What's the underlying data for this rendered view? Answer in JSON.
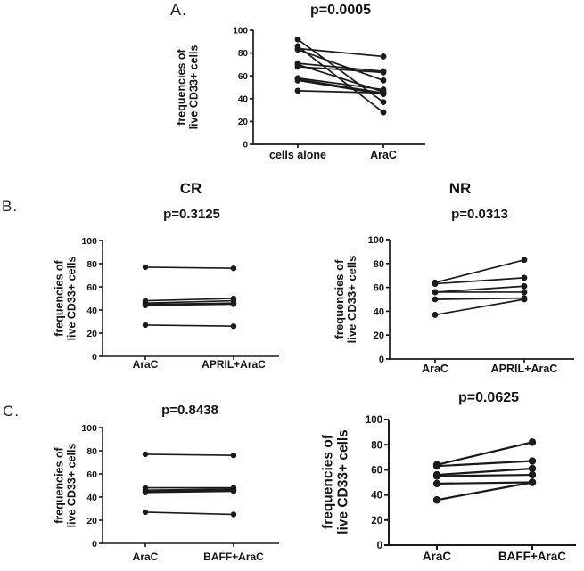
{
  "panels": {
    "a": "A.",
    "b": "B.",
    "c": "C."
  },
  "colors": {
    "ink": "#1a1a1a",
    "background": "#ffffff"
  },
  "chart_data": [
    {
      "id": "a",
      "type": "line",
      "subtype": "paired-before-after",
      "title": "p=0.0005",
      "group_header": "",
      "ylabel": "frequencies of\nlive CD33+ cells",
      "categories": [
        "cells alone",
        "AraC"
      ],
      "ylim": [
        0,
        100
      ],
      "ytick_step": 20,
      "grid": false,
      "legend": false,
      "pairs": [
        [
          92,
          37
        ],
        [
          86,
          28
        ],
        [
          84,
          77
        ],
        [
          83,
          56
        ],
        [
          71,
          64
        ],
        [
          70,
          46
        ],
        [
          68,
          63
        ],
        [
          58,
          48
        ],
        [
          57,
          45
        ],
        [
          56,
          44
        ],
        [
          47,
          45
        ]
      ]
    },
    {
      "id": "b-cr",
      "type": "line",
      "subtype": "paired-before-after",
      "title": "p=0.3125",
      "group_header": "CR",
      "ylabel": "frequencies of\nlive CD33+ cells",
      "categories": [
        "AraC",
        "APRIL+AraC"
      ],
      "ylim": [
        0,
        100
      ],
      "ytick_step": 20,
      "grid": false,
      "legend": false,
      "pairs": [
        [
          77,
          76
        ],
        [
          48,
          50
        ],
        [
          46,
          48
        ],
        [
          45,
          46
        ],
        [
          44,
          45
        ],
        [
          27,
          26
        ]
      ]
    },
    {
      "id": "b-nr",
      "type": "line",
      "subtype": "paired-before-after",
      "title": "p=0.0313",
      "group_header": "NR",
      "ylabel": "frequencies of\nlive CD33+ cells",
      "categories": [
        "AraC",
        "APRIL+AraC"
      ],
      "ylim": [
        0,
        100
      ],
      "ytick_step": 20,
      "grid": false,
      "legend": false,
      "pairs": [
        [
          64,
          83
        ],
        [
          63,
          68
        ],
        [
          56,
          61
        ],
        [
          56,
          56
        ],
        [
          50,
          51
        ],
        [
          37,
          50
        ]
      ]
    },
    {
      "id": "c-cr",
      "type": "line",
      "subtype": "paired-before-after",
      "title": "p=0.8438",
      "group_header": "",
      "ylabel": "frequencies of\nlive CD33+ cells",
      "categories": [
        "AraC",
        "BAFF+AraC"
      ],
      "ylim": [
        0,
        100
      ],
      "ytick_step": 20,
      "grid": false,
      "legend": false,
      "pairs": [
        [
          77,
          76
        ],
        [
          48,
          48
        ],
        [
          46,
          47
        ],
        [
          45,
          46
        ],
        [
          44,
          45
        ],
        [
          27,
          25
        ]
      ]
    },
    {
      "id": "c-nr",
      "type": "line",
      "subtype": "paired-before-after",
      "title": "p=0.0625",
      "group_header": "",
      "ylabel": "frequencies of\nlive CD33+ cells",
      "categories": [
        "AraC",
        "BAFF+AraC"
      ],
      "ylim": [
        0,
        100
      ],
      "ytick_step": 20,
      "grid": false,
      "legend": false,
      "pairs": [
        [
          64,
          82
        ],
        [
          63,
          67
        ],
        [
          56,
          61
        ],
        [
          55,
          56
        ],
        [
          49,
          50
        ],
        [
          36,
          50
        ]
      ]
    }
  ]
}
